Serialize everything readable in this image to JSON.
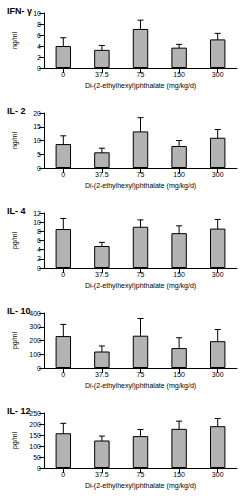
{
  "chart_data": [
    {
      "type": "bar",
      "title": "IFN- γ",
      "categories": [
        "0",
        "37.5",
        "75",
        "150",
        "300"
      ],
      "values": [
        4.0,
        3.3,
        7.1,
        3.7,
        5.2
      ],
      "errors": [
        1.5,
        0.8,
        1.6,
        0.6,
        1.1
      ],
      "xlabel": "Di-(2-ethylhexyl)phthalate (mg/kg/d)",
      "ylabel": "ng/ml",
      "ylim": [
        0,
        10
      ],
      "yticks": [
        0,
        2,
        4,
        6,
        8,
        10
      ],
      "color": "#b3b3b3",
      "grid": false
    },
    {
      "type": "bar",
      "title": "IL- 2",
      "categories": [
        "0",
        "37.5",
        "75",
        "150",
        "300"
      ],
      "values": [
        8.7,
        5.7,
        13.3,
        8.0,
        11.0
      ],
      "errors": [
        3.0,
        1.5,
        5.0,
        2.0,
        3.0
      ],
      "xlabel": "Di-(2-ethylhexyl)phthalate (mg/kg/d)",
      "ylabel": "ng/ml",
      "ylim": [
        0,
        20
      ],
      "yticks": [
        0,
        5,
        10,
        15,
        20
      ],
      "color": "#b3b3b3",
      "grid": false
    },
    {
      "type": "bar",
      "title": "IL- 4",
      "categories": [
        "0",
        "37.5",
        "75",
        "150",
        "300"
      ],
      "values": [
        8.5,
        4.8,
        9.0,
        7.6,
        8.6
      ],
      "errors": [
        2.3,
        0.8,
        1.5,
        1.6,
        2.0
      ],
      "xlabel": "Di-(2-ethylhexyl)phthalate (mg/kg/d)",
      "ylabel": "pg/ml",
      "ylim": [
        0,
        12
      ],
      "yticks": [
        0,
        2,
        4,
        6,
        8,
        10,
        12
      ],
      "color": "#b3b3b3",
      "grid": false
    },
    {
      "type": "bar",
      "title": "IL- 10",
      "categories": [
        "0",
        "37.5",
        "75",
        "150",
        "300"
      ],
      "values": [
        232,
        120,
        235,
        145,
        195
      ],
      "errors": [
        85,
        40,
        125,
        75,
        85
      ],
      "xlabel": "Di-(2-ethylhexyl)phthalate (mg/kg/d)",
      "ylabel": "pg/ml",
      "ylim": [
        0,
        400
      ],
      "yticks": [
        0,
        100,
        200,
        300,
        400
      ],
      "color": "#b3b3b3",
      "grid": false
    },
    {
      "type": "bar",
      "title": "IL- 12",
      "categories": [
        "0",
        "37.5",
        "75",
        "150",
        "300"
      ],
      "values": [
        158,
        125,
        145,
        178,
        190
      ],
      "errors": [
        45,
        20,
        30,
        35,
        35
      ],
      "xlabel": "Di-(2-ethylhexyl)phthalate (mg/kg/d)",
      "ylabel": "pg/ml",
      "ylim": [
        0,
        250
      ],
      "yticks": [
        0,
        50,
        100,
        150,
        200,
        250
      ],
      "color": "#b3b3b3",
      "grid": false
    }
  ]
}
